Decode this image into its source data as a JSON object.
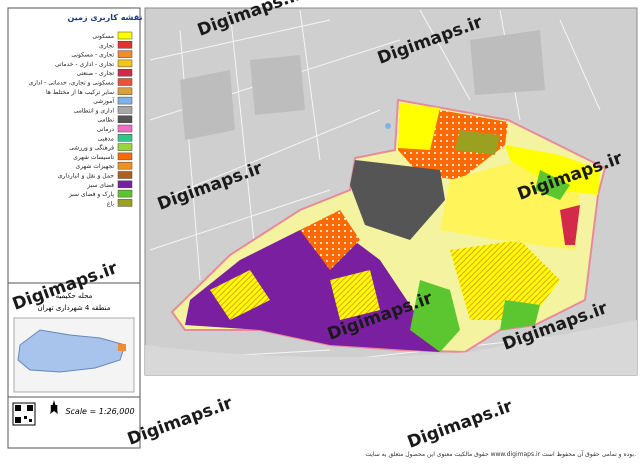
{
  "legend": {
    "title": "نقشه کاربری زمین",
    "items": [
      {
        "label": "مسکونی",
        "color": "#ffff00"
      },
      {
        "label": "تجاری",
        "color": "#e8312a"
      },
      {
        "label": "تجاری - مسکونی",
        "color": "#f28b30"
      },
      {
        "label": "تجاری - اداری - خدماتی",
        "color": "#f5c518"
      },
      {
        "label": "تجاری - صنعتی",
        "color": "#d42a4a"
      },
      {
        "label": "مسکونی و تجاری، خدماتی - اداری",
        "color": "#e6553a"
      },
      {
        "label": "سایر ترکیب ها از مختلط ها",
        "color": "#d9a040"
      },
      {
        "label": "آموزشی",
        "color": "#7fb2e8"
      },
      {
        "label": "اداری و انتظامی",
        "color": "#a8a8a8"
      },
      {
        "label": "نظامی",
        "color": "#555555"
      },
      {
        "label": "درمانی",
        "color": "#f06ec8"
      },
      {
        "label": "مذهبی",
        "color": "#35c48a"
      },
      {
        "label": "فرهنگی و ورزشی",
        "color": "#9ad440"
      },
      {
        "label": "تاسیسات شهری",
        "color": "#ff6a00"
      },
      {
        "label": "تجهیزات شهری",
        "color": "#f09020"
      },
      {
        "label": "حمل و نقل و انبارداری",
        "color": "#b06020"
      },
      {
        "label": "فضای سبز",
        "color": "#7a1fa0"
      },
      {
        "label": "پارک و فضای سبز",
        "color": "#5cc630"
      },
      {
        "label": "باغ",
        "color": "#9aa020"
      }
    ]
  },
  "locator": {
    "neighborhood": "محله حکیمیه",
    "district": "منطقه 4 شهرداری تهران"
  },
  "scale": "Scale = 1:26,000",
  "watermark": "Digimaps.ir",
  "footer": "حقوق مالکیت معنوی این محصول متعلق به سایت www.digimaps.ir بوده و تمامی حقوق آن محفوظ است."
}
